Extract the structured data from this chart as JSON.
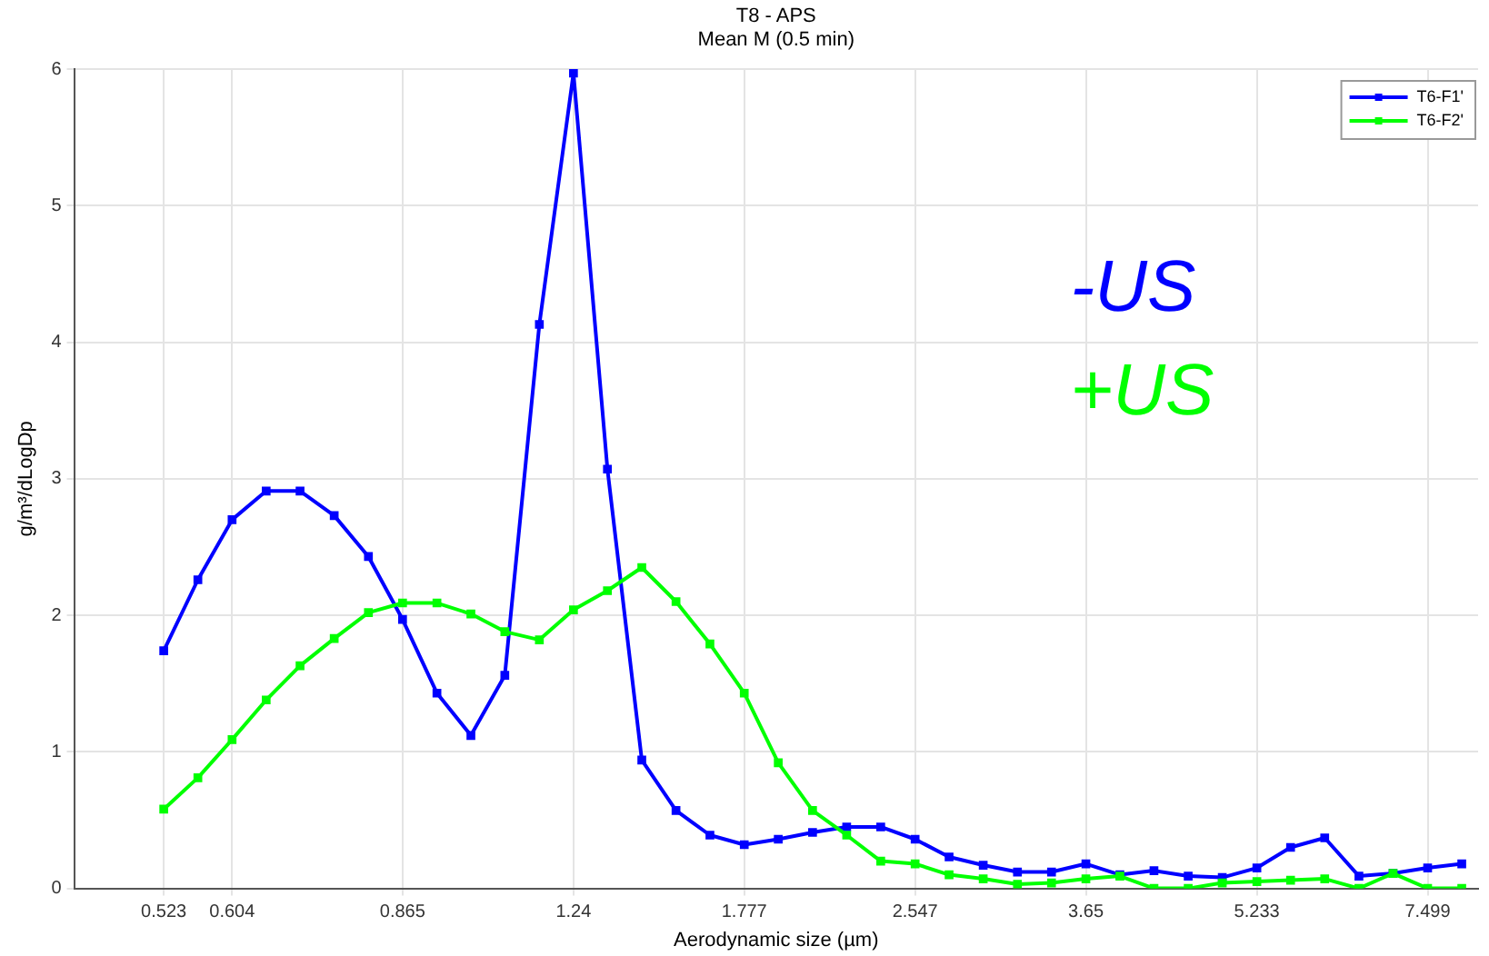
{
  "chart_data": {
    "type": "line",
    "title": "T8 - APS",
    "subtitle": "Mean M (0.5 min)",
    "xlabel": "Aerodynamic size (µm)",
    "ylabel": "g/m³/dLogDp",
    "x": [
      0.523,
      0.562,
      0.604,
      0.649,
      0.697,
      0.749,
      0.805,
      0.865,
      0.93,
      0.999,
      1.073,
      1.154,
      1.24,
      1.332,
      1.432,
      1.539,
      1.653,
      1.777,
      1.909,
      2.052,
      2.205,
      2.369,
      2.547,
      2.736,
      2.94,
      3.16,
      3.395,
      3.65,
      3.921,
      4.213,
      4.528,
      4.865,
      5.233,
      5.618,
      6.037,
      6.488,
      6.972,
      7.499,
      8.058
    ],
    "series": [
      {
        "name": "T6-F1'",
        "color": "#0000ff",
        "values": [
          1.74,
          2.26,
          2.7,
          2.91,
          2.91,
          2.73,
          2.43,
          1.97,
          1.43,
          1.12,
          1.56,
          4.13,
          5.97,
          3.07,
          0.94,
          0.57,
          0.39,
          0.32,
          0.36,
          0.41,
          0.45,
          0.45,
          0.36,
          0.23,
          0.17,
          0.12,
          0.12,
          0.18,
          0.1,
          0.13,
          0.09,
          0.08,
          0.15,
          0.3,
          0.37,
          0.09,
          0.11,
          0.15,
          0.18
        ]
      },
      {
        "name": "T6-F2'",
        "color": "#00ff00",
        "values": [
          0.58,
          0.81,
          1.09,
          1.38,
          1.63,
          1.83,
          2.02,
          2.09,
          2.09,
          2.01,
          1.88,
          1.82,
          2.04,
          2.18,
          2.35,
          2.1,
          1.79,
          1.43,
          0.92,
          0.57,
          0.39,
          0.2,
          0.18,
          0.1,
          0.07,
          0.03,
          0.04,
          0.07,
          0.09,
          0.0,
          0.0,
          0.04,
          0.05,
          0.06,
          0.07,
          0.0,
          0.11,
          0.0,
          0.0
        ]
      }
    ],
    "annotations": [
      "-US",
      "+US"
    ],
    "log": "x",
    "xlim": [
      0.433,
      8.34
    ],
    "xticks": [
      0.523,
      0.604,
      0.865,
      1.24,
      1.777,
      2.547,
      3.65,
      5.233,
      7.499
    ],
    "ylim": [
      0,
      6
    ],
    "yticks": [
      0,
      1,
      2,
      3,
      4,
      5,
      6
    ],
    "grid": true,
    "legend": "top right",
    "marker": "square",
    "line_style": "solid"
  }
}
